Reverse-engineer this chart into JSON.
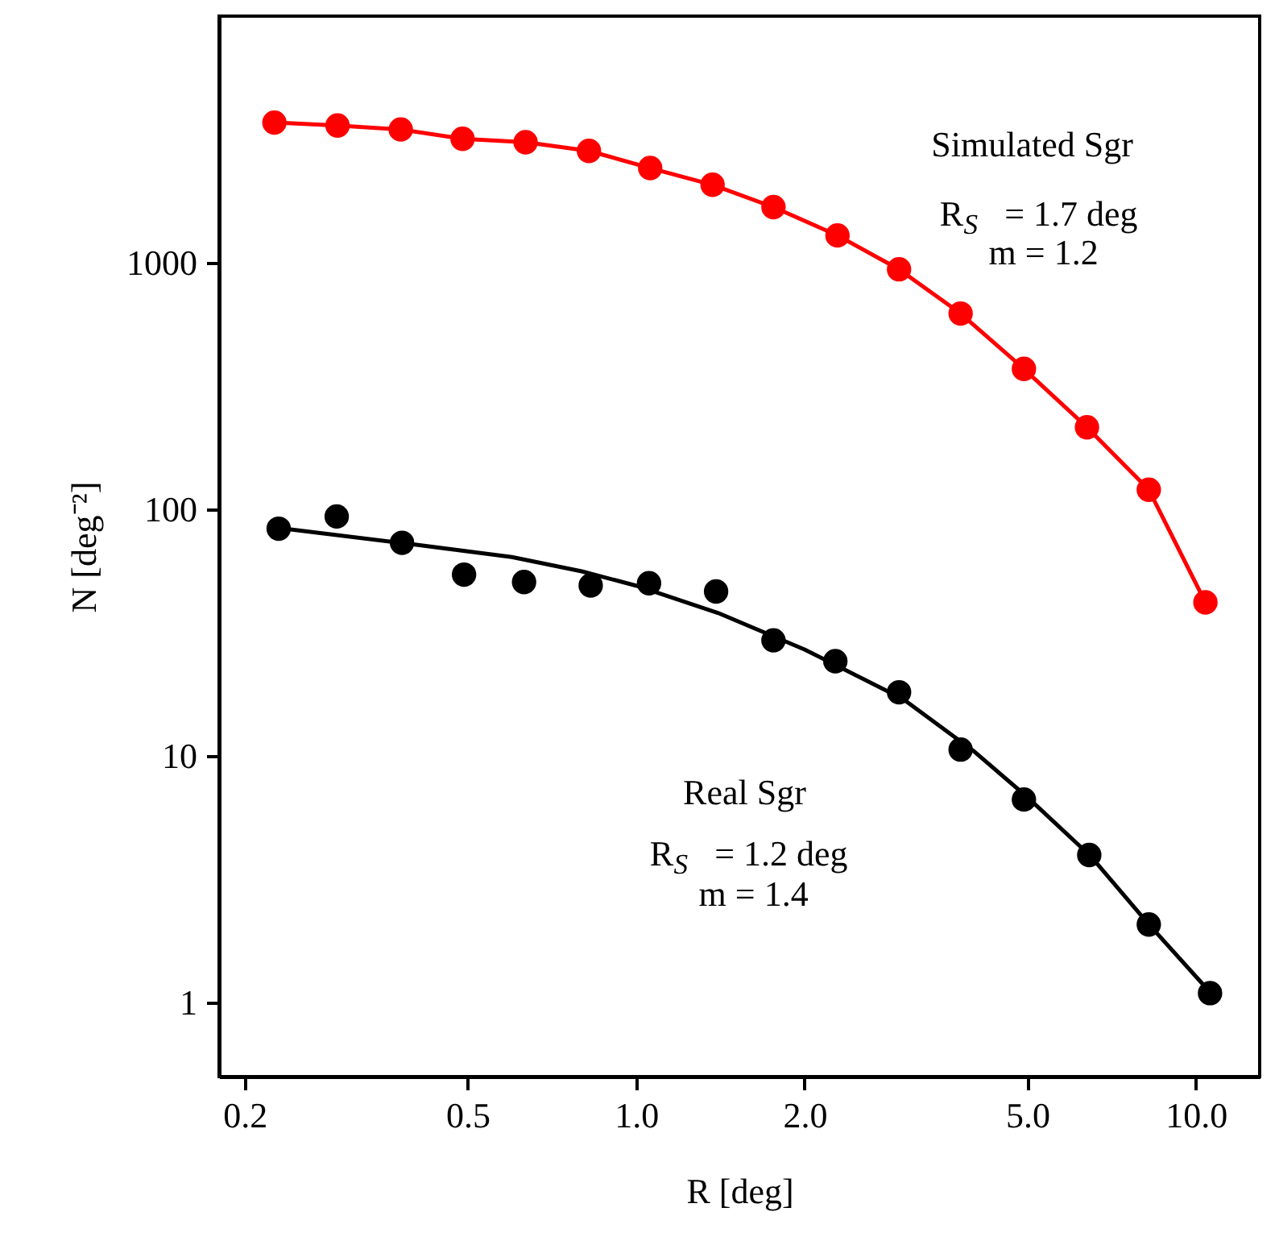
{
  "chart_data": {
    "type": "scatter",
    "xlabel": "R [deg]",
    "ylabel": "N [deg⁻²]",
    "log": "xy",
    "xlim": [
      0.18,
      13
    ],
    "ylim": [
      0.5,
      10000
    ],
    "xticks": [
      {
        "value": 0.2,
        "label": "0.2"
      },
      {
        "value": 0.5,
        "label": "0.5"
      },
      {
        "value": 1,
        "label": "1.0"
      },
      {
        "value": 2,
        "label": "2.0"
      },
      {
        "value": 5,
        "label": "5.0"
      },
      {
        "value": 10,
        "label": "10.0"
      }
    ],
    "yticks": [
      1,
      10,
      100,
      1000
    ],
    "grid": false,
    "series": [
      {
        "type": "line",
        "marker": "circle",
        "color": "#ff0000",
        "x": [
          0.226,
          0.293,
          0.38,
          0.49,
          0.635,
          0.824,
          1.06,
          1.37,
          1.76,
          2.29,
          2.95,
          3.8,
          4.93,
          6.39,
          8.24,
          10.4
        ],
        "values": [
          3700,
          3600,
          3470,
          3180,
          3080,
          2840,
          2420,
          2070,
          1680,
          1290,
          940,
          622,
          371,
          215,
          120,
          41.9
        ]
      },
      {
        "marker": "circle",
        "color": "#000000",
        "x": [
          0.23,
          0.292,
          0.382,
          0.493,
          0.631,
          0.83,
          1.055,
          1.39,
          1.76,
          2.27,
          2.95,
          3.8,
          4.93,
          6.45,
          8.24,
          10.6
        ],
        "values": [
          83.4,
          93.5,
          73.1,
          54.3,
          50.7,
          49.1,
          50.1,
          46.4,
          29.4,
          24.2,
          18.1,
          10.6,
          6.65,
          3.96,
          2.07,
          1.09
        ]
      },
      {
        "type": "line",
        "marker": "none",
        "color": "#000000",
        "x": [
          0.24,
          0.4,
          0.6,
          0.8,
          1.0,
          1.4,
          2.0,
          3.0,
          4.0,
          5.0,
          6.5,
          8.2,
          10.6
        ],
        "values": [
          83,
          72,
          64,
          56,
          49,
          38,
          27,
          17,
          10.5,
          6.8,
          3.9,
          2.1,
          1.1
        ]
      }
    ],
    "annotations": [
      "Simulated Sgr",
      "R$_{S}$ = 1.7 deg",
      "m = 1.2",
      "Real Sgr",
      "R$_{S}$ = 1.2 deg",
      "m = 1.4"
    ]
  }
}
